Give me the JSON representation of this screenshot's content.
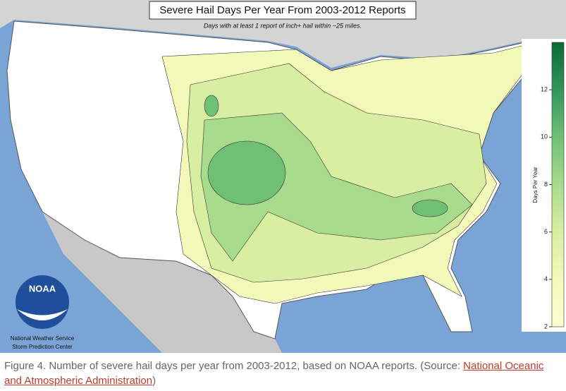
{
  "map": {
    "title": "Severe Hail Days Per Year From 2003-2012 Reports",
    "subtitle": "Days with at least 1 report of inch+ hail within ~25 miles.",
    "colorbar": {
      "label": "Days Per Year",
      "lim": [
        2,
        14
      ],
      "ticks": [
        2,
        4,
        6,
        8,
        10,
        12
      ]
    },
    "logo": {
      "name": "NOAA",
      "line1": "National Weather Service",
      "line2": "Storm Prediction Center"
    }
  },
  "caption": {
    "text": "Figure 4. Number of severe hail days per year from 2003-2012, based on NOAA reports. (Source: ",
    "link": "National Oceanic and Atmospheric Administration",
    "close": ")"
  }
}
